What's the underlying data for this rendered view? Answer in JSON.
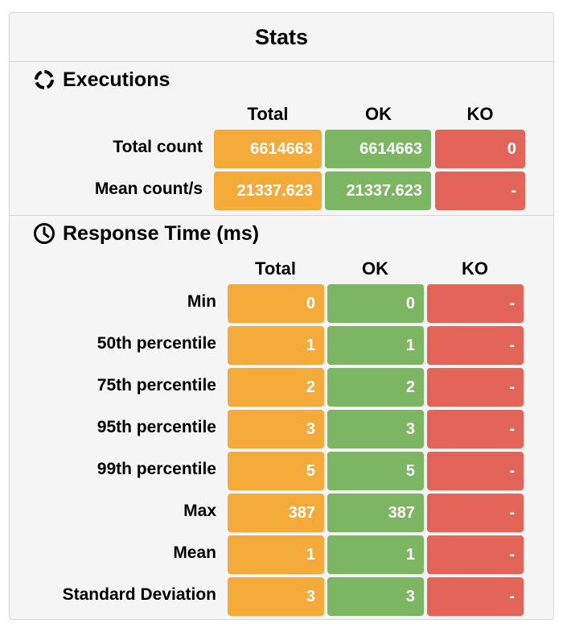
{
  "title": "Stats",
  "executions": {
    "heading": "Executions",
    "columns": [
      "Total",
      "OK",
      "KO"
    ],
    "rows": [
      {
        "label": "Total count",
        "total": "6614663",
        "ok": "6614663",
        "ko": "0"
      },
      {
        "label": "Mean count/s",
        "total": "21337.623",
        "ok": "21337.623",
        "ko": "-"
      }
    ]
  },
  "response_time": {
    "heading": "Response Time (ms)",
    "columns": [
      "Total",
      "OK",
      "KO"
    ],
    "rows": [
      {
        "label": "Min",
        "total": "0",
        "ok": "0",
        "ko": "-"
      },
      {
        "label": "50th percentile",
        "total": "1",
        "ok": "1",
        "ko": "-"
      },
      {
        "label": "75th percentile",
        "total": "2",
        "ok": "2",
        "ko": "-"
      },
      {
        "label": "95th percentile",
        "total": "3",
        "ok": "3",
        "ko": "-"
      },
      {
        "label": "99th percentile",
        "total": "5",
        "ok": "5",
        "ko": "-"
      },
      {
        "label": "Max",
        "total": "387",
        "ok": "387",
        "ko": "-"
      },
      {
        "label": "Mean",
        "total": "1",
        "ok": "1",
        "ko": "-"
      },
      {
        "label": "Standard Deviation",
        "total": "3",
        "ok": "3",
        "ko": "-"
      }
    ]
  },
  "colors": {
    "total": "#f4ab3a",
    "ok": "#7db663",
    "ko": "#e36458"
  },
  "icons": {
    "executions": "refresh-circle-icon",
    "response_time": "clock-icon"
  }
}
